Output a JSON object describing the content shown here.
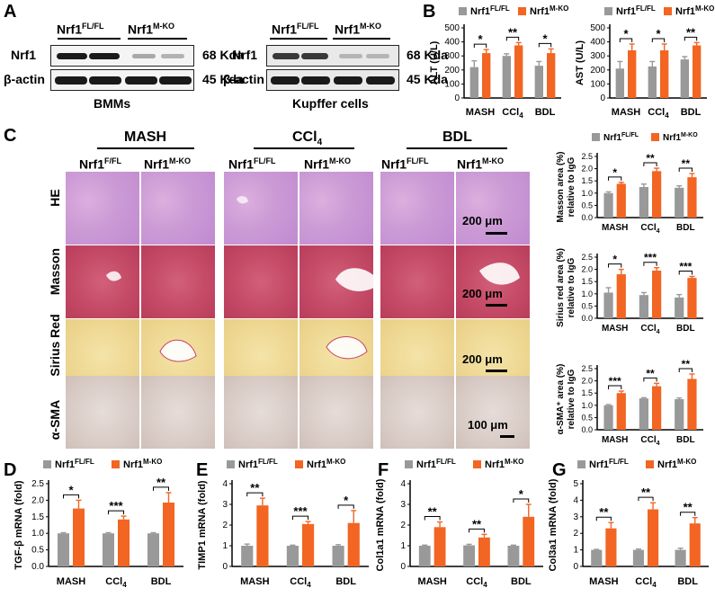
{
  "colors": {
    "ctrl": "#999999",
    "ko": "#f26522"
  },
  "panel_labels": {
    "A": "A",
    "B": "B",
    "C": "C",
    "D": "D",
    "E": "E",
    "F": "F",
    "G": "G"
  },
  "panelA": {
    "left": {
      "group1": "Nrf1",
      "group1_sup": "FL/FL",
      "group2": "Nrf1",
      "group2_sup": "M-KO",
      "row1": "Nrf1",
      "row2": "β-actin",
      "kda1": "68 Kda",
      "kda2": "45 Kda",
      "caption": "BMMs"
    },
    "right": {
      "group1": "Nrf1",
      "group1_sup": "FL/FL",
      "group2": "Nrf1",
      "group2_sup": "M-KO",
      "row1": "Nrf1",
      "row2": "β-actin",
      "kda1": "68 Kda",
      "kda2": "45 Kda",
      "caption": "Kupffer cells"
    }
  },
  "panelC": {
    "model_mash": "MASH",
    "model_ccl4": "CCl",
    "model_ccl4_sub": "4",
    "model_bdl": "BDL",
    "geno_ff_a": "Nrf1",
    "geno_ff_a_sup": "F/FL",
    "geno_ko": "Nrf1",
    "geno_ko_sup": "M-KO",
    "geno_ff": "Nrf1",
    "geno_ff_sup": "FL/FL",
    "stain_he": "HE",
    "stain_masson": "Masson",
    "stain_sirius": "Sirius Red",
    "stain_sma": "α-SMA",
    "scale_he": "200 μm",
    "scale_masson": "200 μm",
    "scale_sirius": "200 μm",
    "scale_sma": "100 μm"
  },
  "chart_data": [
    {
      "id": "B1",
      "type": "bar",
      "ylabel": "ALT (U/L)",
      "ylim": [
        0,
        500
      ],
      "yticks": [
        0,
        100,
        200,
        300,
        400,
        500
      ],
      "categories": [
        "MASH",
        "CCl4",
        "BDL"
      ],
      "series": [
        {
          "name": "Nrf1 FL/FL",
          "values": [
            220,
            300,
            230
          ],
          "err": [
            45,
            15,
            30
          ]
        },
        {
          "name": "Nrf1 M-KO",
          "values": [
            320,
            375,
            320
          ],
          "err": [
            25,
            20,
            30
          ]
        }
      ],
      "significance": [
        "*",
        "**",
        "*"
      ]
    },
    {
      "id": "B2",
      "type": "bar",
      "ylabel": "AST (U/L)",
      "ylim": [
        0,
        500
      ],
      "yticks": [
        0,
        100,
        200,
        300,
        400,
        500
      ],
      "categories": [
        "MASH",
        "CCl4",
        "BDL"
      ],
      "series": [
        {
          "name": "Nrf1 FL/FL",
          "values": [
            210,
            225,
            275
          ],
          "err": [
            50,
            35,
            20
          ]
        },
        {
          "name": "Nrf1 M-KO",
          "values": [
            340,
            340,
            375
          ],
          "err": [
            45,
            45,
            20
          ]
        }
      ],
      "significance": [
        "*",
        "*",
        "**"
      ]
    },
    {
      "id": "C1",
      "type": "bar",
      "ylabel": "Masson area (%)",
      "ylabel2": "relative to IgG",
      "ylim": [
        0,
        2.5
      ],
      "yticks": [
        0.0,
        0.5,
        1.0,
        1.5,
        2.0,
        2.5
      ],
      "categories": [
        "MASH",
        "CCl4",
        "BDL"
      ],
      "series": [
        {
          "name": "Nrf1 FL/FL",
          "values": [
            1.0,
            1.25,
            1.22
          ],
          "err": [
            0.05,
            0.12,
            0.08
          ]
        },
        {
          "name": "Nrf1 M-KO",
          "values": [
            1.38,
            1.9,
            1.65
          ],
          "err": [
            0.06,
            0.12,
            0.15
          ]
        }
      ],
      "significance": [
        "*",
        "**",
        "**"
      ]
    },
    {
      "id": "C2",
      "type": "bar",
      "ylabel": "Sirius red area (%)",
      "ylabel2": "relative to IgG",
      "ylim": [
        0,
        2.5
      ],
      "yticks": [
        0.0,
        0.5,
        1.0,
        1.5,
        2.0,
        2.5
      ],
      "categories": [
        "MASH",
        "CCl4",
        "BDL"
      ],
      "series": [
        {
          "name": "Nrf1 FL/FL",
          "values": [
            1.05,
            0.95,
            0.85
          ],
          "err": [
            0.2,
            0.1,
            0.12
          ]
        },
        {
          "name": "Nrf1 M-KO",
          "values": [
            1.8,
            1.95,
            1.65
          ],
          "err": [
            0.2,
            0.12,
            0.06
          ]
        }
      ],
      "significance": [
        "*",
        "***",
        "***"
      ]
    },
    {
      "id": "C3",
      "type": "bar",
      "ylabel": "α-SMA⁺ area (%)",
      "ylabel2": "relative to IgG",
      "ylim": [
        0,
        2.5
      ],
      "yticks": [
        0.0,
        0.5,
        1.0,
        1.5,
        2.0,
        2.5
      ],
      "categories": [
        "MASH",
        "CCl4",
        "BDL"
      ],
      "series": [
        {
          "name": "Nrf1 FL/FL",
          "values": [
            1.0,
            1.28,
            1.25
          ],
          "err": [
            0.03,
            0.03,
            0.05
          ]
        },
        {
          "name": "Nrf1 M-KO",
          "values": [
            1.5,
            1.78,
            2.08
          ],
          "err": [
            0.08,
            0.12,
            0.2
          ]
        }
      ],
      "significance": [
        "***",
        "**",
        "**"
      ]
    },
    {
      "id": "D",
      "type": "bar",
      "ylabel": "TGF-β mRNA (fold)",
      "ylim": [
        0,
        2.5
      ],
      "yticks": [
        0.0,
        0.5,
        1.0,
        1.5,
        2.0,
        2.5
      ],
      "categories": [
        "MASH",
        "CCl4",
        "BDL"
      ],
      "series": [
        {
          "name": "Nrf1 FL/FL",
          "values": [
            1.0,
            1.0,
            1.0
          ],
          "err": [
            0.02,
            0.02,
            0.02
          ]
        },
        {
          "name": "Nrf1 M-KO",
          "values": [
            1.75,
            1.42,
            1.93
          ],
          "err": [
            0.25,
            0.1,
            0.3
          ]
        }
      ],
      "significance": [
        "*",
        "***",
        "**"
      ]
    },
    {
      "id": "E",
      "type": "bar",
      "ylabel": "TIMP1 mRNA (fold)",
      "ylim": [
        0,
        4
      ],
      "yticks": [
        0,
        1,
        2,
        3,
        4
      ],
      "categories": [
        "MASH",
        "CCl4",
        "BDL"
      ],
      "series": [
        {
          "name": "Nrf1 FL/FL",
          "values": [
            1.0,
            1.0,
            1.0
          ],
          "err": [
            0.08,
            0.03,
            0.05
          ]
        },
        {
          "name": "Nrf1 M-KO",
          "values": [
            2.95,
            2.05,
            2.1
          ],
          "err": [
            0.35,
            0.12,
            0.6
          ]
        }
      ],
      "significance": [
        "**",
        "***",
        "*"
      ]
    },
    {
      "id": "F",
      "type": "bar",
      "ylabel": "Col1a1 mRNA (fold)",
      "ylim": [
        0,
        4
      ],
      "yticks": [
        0,
        1,
        2,
        3,
        4
      ],
      "categories": [
        "MASH",
        "CCl4",
        "BDL"
      ],
      "series": [
        {
          "name": "Nrf1 FL/FL",
          "values": [
            1.0,
            1.02,
            1.0
          ],
          "err": [
            0.03,
            0.05,
            0.03
          ]
        },
        {
          "name": "Nrf1 M-KO",
          "values": [
            1.9,
            1.4,
            2.4
          ],
          "err": [
            0.25,
            0.15,
            0.6
          ]
        }
      ],
      "significance": [
        "**",
        "**",
        "*"
      ]
    },
    {
      "id": "G",
      "type": "bar",
      "ylabel": "Col3a1 mRNA (fold)",
      "ylim": [
        0,
        5
      ],
      "yticks": [
        0,
        1,
        2,
        3,
        4,
        5
      ],
      "categories": [
        "MASH",
        "CCl4",
        "BDL"
      ],
      "series": [
        {
          "name": "Nrf1 FL/FL",
          "values": [
            1.0,
            1.0,
            1.0
          ],
          "err": [
            0.03,
            0.05,
            0.1
          ]
        },
        {
          "name": "Nrf1 M-KO",
          "values": [
            2.3,
            3.45,
            2.6
          ],
          "err": [
            0.35,
            0.4,
            0.35
          ]
        }
      ],
      "significance": [
        "**",
        "**",
        "**"
      ]
    }
  ],
  "legend": {
    "ctrl": "Nrf1",
    "ctrl_sup": "FL/FL",
    "ko": "Nrf1",
    "ko_sup": "M-KO"
  }
}
